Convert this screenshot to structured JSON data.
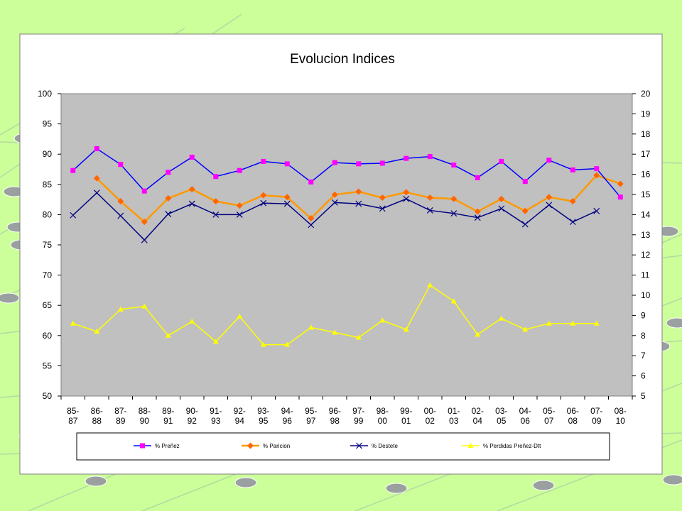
{
  "slide": {
    "background_color": "#ccff99",
    "decoration_line_color": "#b3d9a3",
    "decoration_node_color": "#9aa0a0"
  },
  "chart_data": {
    "type": "line",
    "title": "Evolucion Indices",
    "plot_background": "#c0c0c0",
    "grid": false,
    "legend_position": "bottom",
    "categories": [
      "85-87",
      "86-88",
      "87-89",
      "88-90",
      "89-91",
      "90-92",
      "91-93",
      "92-94",
      "93-95",
      "94-96",
      "95-97",
      "96-98",
      "97-99",
      "98-00",
      "99-01",
      "00-02",
      "01-03",
      "02-04",
      "03-05",
      "04-06",
      "05-07",
      "06-08",
      "07-09",
      "08-10"
    ],
    "y_left": {
      "min": 50,
      "max": 100,
      "ticks": [
        50,
        55,
        60,
        65,
        70,
        75,
        80,
        85,
        90,
        95,
        100
      ]
    },
    "y_right": {
      "min": 5,
      "max": 20,
      "ticks": [
        5,
        6,
        7,
        8,
        9,
        10,
        11,
        12,
        13,
        14,
        15,
        16,
        17,
        18,
        19,
        20
      ]
    },
    "series": [
      {
        "name": "% Preñez",
        "axis": "left",
        "color": "#0000ff",
        "marker": "square",
        "marker_color": "#ff00ff",
        "values": [
          87.3,
          90.9,
          88.3,
          83.9,
          87.0,
          89.5,
          86.3,
          87.3,
          88.8,
          88.4,
          85.4,
          88.6,
          88.4,
          88.5,
          89.3,
          89.6,
          88.2,
          86.1,
          88.8,
          85.5,
          89.0,
          87.4,
          87.6,
          82.9
        ]
      },
      {
        "name": "% Paricion",
        "axis": "left",
        "color": "#ff9900",
        "marker": "diamond",
        "marker_color": "#ff6600",
        "values": [
          null,
          86.0,
          82.2,
          78.8,
          82.7,
          84.2,
          82.2,
          81.5,
          83.2,
          82.9,
          79.4,
          83.3,
          83.8,
          82.8,
          83.7,
          82.8,
          82.6,
          80.5,
          82.6,
          80.6,
          82.9,
          82.2,
          86.5,
          85.1
        ]
      },
      {
        "name": "% Destete",
        "axis": "left",
        "color": "#000080",
        "marker": "x",
        "marker_color": "#000080",
        "values": [
          79.9,
          83.6,
          79.8,
          75.8,
          80.1,
          81.8,
          80.0,
          80.0,
          81.9,
          81.8,
          78.3,
          82.0,
          81.8,
          81.0,
          82.6,
          80.7,
          80.2,
          79.5,
          81.0,
          78.4,
          81.6,
          78.8,
          80.6,
          null
        ]
      },
      {
        "name": "% Perdidas Preñez-Dtt",
        "axis": "right",
        "color": "#ffff00",
        "marker": "triangle",
        "marker_color": "#ffff00",
        "values": [
          8.6,
          8.2,
          9.3,
          9.45,
          8.0,
          8.7,
          7.7,
          8.95,
          7.55,
          7.55,
          8.4,
          8.15,
          7.9,
          8.75,
          8.3,
          10.5,
          9.7,
          8.05,
          8.85,
          8.3,
          8.6,
          8.6,
          8.6,
          null
        ]
      }
    ]
  }
}
